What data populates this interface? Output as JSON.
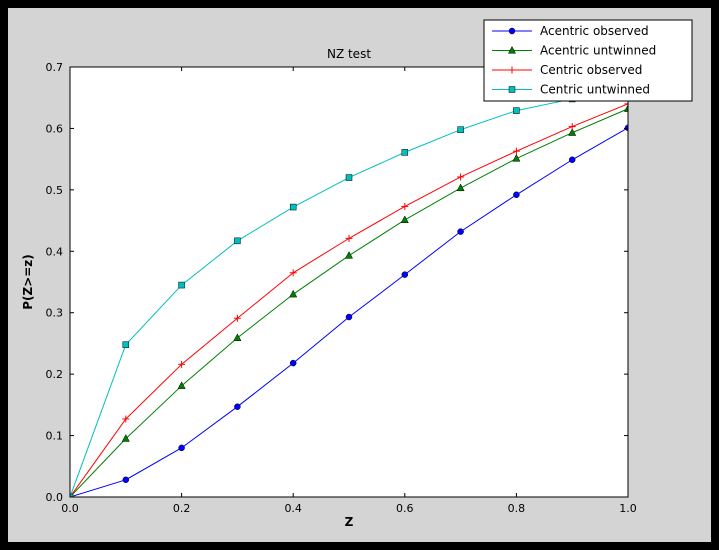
{
  "colors": {
    "window_bg": "#000000",
    "figure_bg": "#d4d4d4",
    "plot_bg": "#ffffff",
    "frame": "#000000"
  },
  "chart_data": {
    "type": "line",
    "title": "NZ test",
    "xlabel": "Z",
    "ylabel": "P(Z>=z)",
    "xlim": [
      0.0,
      1.0
    ],
    "ylim": [
      0.0,
      0.7
    ],
    "xticks": [
      "0.0",
      "0.2",
      "0.4",
      "0.6",
      "0.8",
      "1.0"
    ],
    "yticks": [
      "0.0",
      "0.1",
      "0.2",
      "0.3",
      "0.4",
      "0.5",
      "0.6",
      "0.7"
    ],
    "grid": false,
    "legend_position": "upper right",
    "x": [
      0.0,
      0.1,
      0.2,
      0.3,
      0.4,
      0.5,
      0.6,
      0.7,
      0.8,
      0.9,
      1.0
    ],
    "series": [
      {
        "name": "Acentric observed",
        "color": "#0000ff",
        "marker": "circle",
        "values": [
          0.0,
          0.028,
          0.08,
          0.147,
          0.218,
          0.293,
          0.362,
          0.432,
          0.492,
          0.549,
          0.601
        ]
      },
      {
        "name": "Acentric untwinned",
        "color": "#008000",
        "marker": "triangle",
        "values": [
          0.0,
          0.095,
          0.181,
          0.259,
          0.33,
          0.393,
          0.451,
          0.503,
          0.551,
          0.593,
          0.632
        ]
      },
      {
        "name": "Centric observed",
        "color": "#ff0000",
        "marker": "plus",
        "values": [
          0.0,
          0.127,
          0.216,
          0.291,
          0.365,
          0.421,
          0.473,
          0.521,
          0.563,
          0.603,
          0.64
        ]
      },
      {
        "name": "Centric untwinned",
        "color": "#00bfbf",
        "marker": "square",
        "values": [
          0.0,
          0.248,
          0.345,
          0.417,
          0.472,
          0.52,
          0.561,
          0.598,
          0.629,
          0.648,
          0.658
        ]
      }
    ]
  }
}
